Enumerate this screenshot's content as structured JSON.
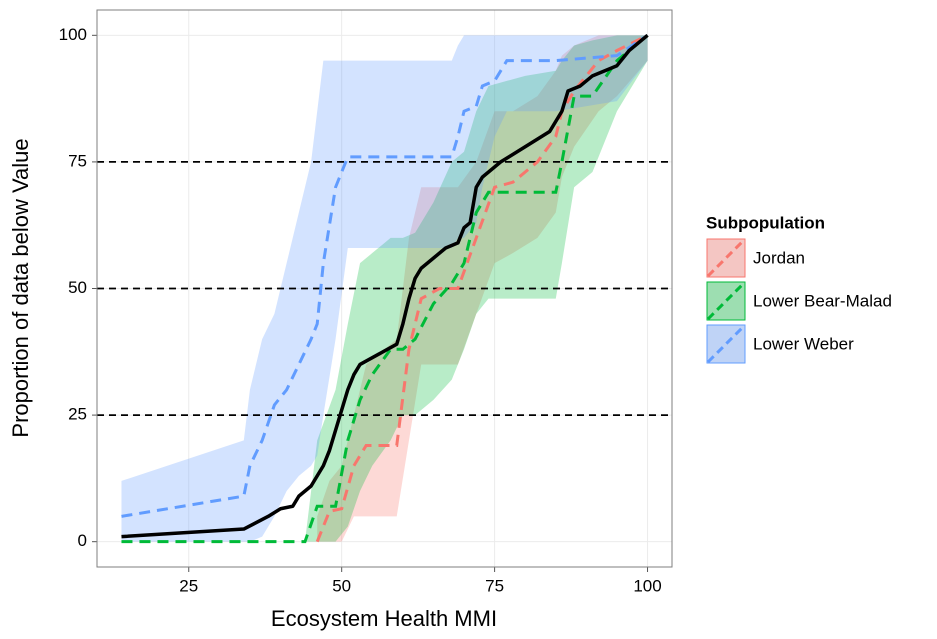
{
  "chart_data": {
    "type": "line",
    "x_label": "Ecosystem Health MMI",
    "y_label": "Proportion of data below Value",
    "legend_title": "Subpopulation",
    "xlim": [
      10,
      104
    ],
    "ylim": [
      -5,
      105
    ],
    "xticks": [
      25,
      50,
      75,
      100
    ],
    "yticks": [
      0,
      25,
      50,
      75,
      100
    ],
    "grid": true,
    "hlines": [
      25,
      50,
      75
    ],
    "series": [
      {
        "name": "Jordan",
        "color": "#F8766D",
        "x": [
          46,
          48,
          50,
          52,
          54,
          59,
          61,
          63,
          66,
          69,
          72,
          75,
          78,
          82,
          85,
          86,
          88,
          92,
          95,
          100
        ],
        "values": [
          0,
          6,
          6.5,
          15,
          19,
          19,
          38,
          48,
          50,
          50,
          60,
          70,
          71,
          75,
          80,
          85,
          89,
          95,
          97,
          100
        ],
        "lower": [
          0,
          0,
          0,
          5,
          5,
          5,
          20,
          35,
          35,
          35,
          45,
          55,
          57,
          60,
          65,
          72,
          78,
          85,
          88,
          95
        ],
        "upper": [
          5,
          12,
          15,
          25,
          35,
          40,
          60,
          70,
          70,
          70,
          75,
          85,
          85,
          88,
          93,
          96,
          98,
          100,
          100,
          100
        ]
      },
      {
        "name": "Lower Bear-Malad",
        "color": "#00BA38",
        "x": [
          14,
          44,
          46,
          49,
          51,
          53,
          55,
          58,
          60,
          62,
          65,
          68,
          70,
          72,
          74,
          80,
          85,
          86,
          88,
          91,
          95,
          100
        ],
        "values": [
          0,
          0,
          7,
          7,
          20,
          28,
          33,
          38,
          38,
          40,
          47,
          51,
          55,
          65,
          69,
          69,
          69,
          75,
          88,
          88,
          95,
          100
        ],
        "lower": [
          0,
          0,
          0,
          0,
          3,
          10,
          15,
          20,
          25,
          25,
          28,
          32,
          38,
          45,
          48,
          48,
          48,
          55,
          70,
          73,
          85,
          95
        ],
        "upper": [
          0,
          0,
          20,
          30,
          43,
          55,
          57,
          60,
          60,
          61,
          67,
          75,
          77,
          85,
          90,
          92,
          93,
          95,
          98,
          99,
          100,
          100
        ]
      },
      {
        "name": "Lower Weber",
        "color": "#619CFF",
        "x": [
          14,
          34,
          35,
          37,
          39,
          41,
          43,
          45,
          46,
          47,
          49,
          51,
          56,
          62,
          68,
          69,
          70,
          72,
          73,
          75,
          77,
          85,
          95,
          100
        ],
        "values": [
          5,
          9,
          15,
          20,
          27,
          30,
          35,
          40,
          43,
          55,
          70,
          76,
          76,
          76,
          76,
          80,
          85,
          86,
          90,
          91,
          95,
          95,
          96,
          100
        ],
        "lower": [
          0,
          0,
          0,
          1,
          5,
          10,
          13,
          15,
          17,
          25,
          40,
          58,
          58,
          58,
          58,
          60,
          60,
          63,
          70,
          80,
          85,
          85,
          87,
          95
        ],
        "upper": [
          12,
          20,
          30,
          40,
          45,
          55,
          65,
          75,
          85,
          95,
          95,
          95,
          95,
          95,
          95,
          98,
          100,
          100,
          100,
          100,
          100,
          100,
          100,
          100
        ]
      }
    ],
    "overall": {
      "color": "#000000",
      "x": [
        14,
        34,
        38,
        40,
        42,
        43,
        45,
        46,
        47,
        48,
        49,
        50,
        51,
        52,
        53,
        56,
        59,
        60,
        61,
        62,
        63,
        65,
        67,
        69,
        70,
        71,
        72,
        73,
        76,
        80,
        84,
        85,
        86,
        87,
        89,
        91,
        95,
        97,
        100
      ],
      "values": [
        1,
        2.5,
        5,
        6.5,
        7,
        9,
        11,
        13,
        15,
        18,
        22,
        26,
        30,
        33,
        35,
        37,
        39,
        43,
        48,
        52,
        54,
        56,
        58,
        59,
        62,
        63,
        70,
        72,
        75,
        78,
        81,
        83,
        85,
        89,
        90,
        92,
        94,
        97,
        100
      ]
    }
  }
}
